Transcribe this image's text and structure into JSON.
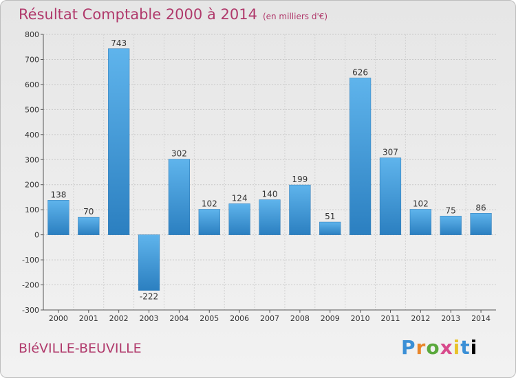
{
  "chart_data": {
    "type": "bar",
    "title": "Résultat Comptable 2000 à 2014",
    "unit_note": "(en milliers d'€)",
    "categories": [
      "2000",
      "2001",
      "2002",
      "2003",
      "2004",
      "2005",
      "2006",
      "2007",
      "2008",
      "2009",
      "2010",
      "2011",
      "2012",
      "2013",
      "2014"
    ],
    "values": [
      138,
      70,
      743,
      -222,
      302,
      102,
      124,
      140,
      199,
      51,
      626,
      307,
      102,
      75,
      86
    ],
    "ylim": [
      -300,
      800
    ],
    "yticks": [
      -300,
      -200,
      -100,
      0,
      100,
      200,
      300,
      400,
      500,
      600,
      700,
      800
    ],
    "xlabel": "",
    "ylabel": "",
    "grid": true,
    "bar_color": "#3d9ee0"
  },
  "footer": {
    "commune": "BléVILLE-BEUVILLE",
    "logo_letters": [
      "P",
      "r",
      "o",
      "x",
      "i",
      "t",
      "i"
    ]
  }
}
